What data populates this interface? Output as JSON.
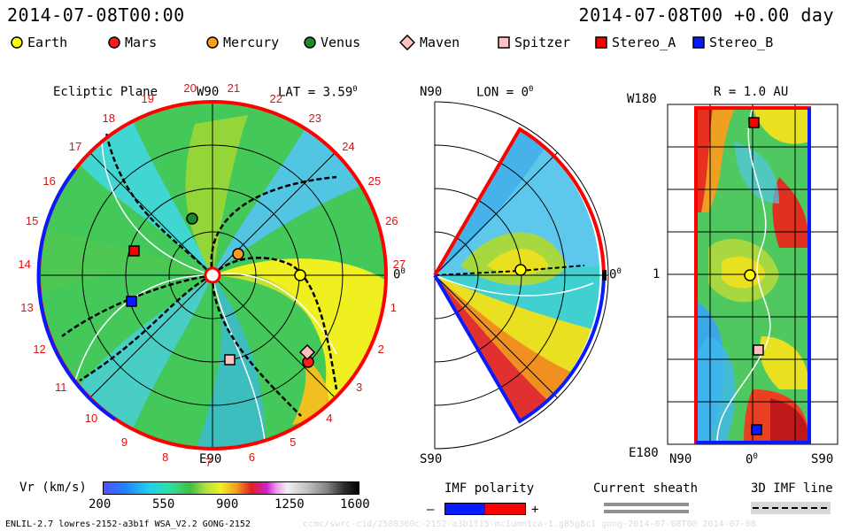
{
  "header": {
    "date_left": "2014-07-08T00:00",
    "date_right": "2014-07-08T00 +0.00 day"
  },
  "legend": [
    {
      "label": "Earth",
      "color": "#ffff00",
      "shape": "circle"
    },
    {
      "label": "Mars",
      "color": "#ff1a1a",
      "shape": "circle"
    },
    {
      "label": "Mercury",
      "color": "#ff9a1a",
      "shape": "circle"
    },
    {
      "label": "Venus",
      "color": "#1a8a2a",
      "shape": "circle"
    },
    {
      "label": "Maven",
      "color": "#ffc0c0",
      "shape": "diamond"
    },
    {
      "label": "Spitzer",
      "color": "#ffc0c0",
      "shape": "square"
    },
    {
      "label": "Stereo_A",
      "color": "#ff0000",
      "shape": "square"
    },
    {
      "label": "Stereo_B",
      "color": "#0a1aff",
      "shape": "square"
    }
  ],
  "ecliptic": {
    "title": "Ecliptic Plane",
    "top_label": "W90",
    "bottom_label": "E90",
    "lat_label": "LAT = 3.59",
    "zero_label": "0",
    "carrington_numbers": [
      "19",
      "20",
      "21",
      "22",
      "23",
      "24",
      "25",
      "26",
      "27",
      "1",
      "2",
      "3",
      "4",
      "5",
      "6",
      "7",
      "8",
      "9",
      "10",
      "11",
      "12",
      "13",
      "14",
      "15",
      "16",
      "17",
      "18"
    ]
  },
  "meridional": {
    "top_label": "N90",
    "lon_label": "LON = 0",
    "bottom_label": "S90",
    "zero_label": "0"
  },
  "radial": {
    "r_label": "R = 1.0 AU",
    "left_top": "W180",
    "left_mid": "1",
    "left_bottom": "E180",
    "bottom_left": "N90",
    "bottom_mid": "0",
    "bottom_right": "S90"
  },
  "colorbar": {
    "label": "Vr (km/s)",
    "ticks": [
      "200",
      "550",
      "900",
      "1250",
      "1600"
    ]
  },
  "imf": {
    "label": "IMF polarity",
    "minus": "–",
    "plus": "+",
    "colors": [
      "#0a1aff",
      "#ff0000"
    ]
  },
  "current_sheath": {
    "label": "Current sheath"
  },
  "imf_line": {
    "label": "3D IMF line"
  },
  "footer": {
    "model_info": "ENLIL-2.7 lowres-2152-a3b1f WSA_V2.2 GONG-2152",
    "watermark": "ccmc/swrc-cid/2580300c-2152-a3b1f15-mc1umn1ca-1.g85g8c1 gong-2014-07-08T00 2014-07-08"
  }
}
